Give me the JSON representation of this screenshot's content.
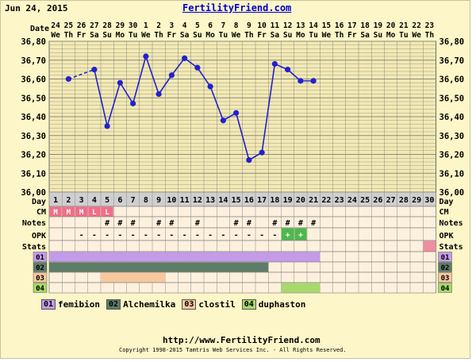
{
  "header": {
    "date": "Jun 24, 2015",
    "site": "FertilityFriend.com"
  },
  "footer": {
    "url": "http://www.FertilityFriend.com",
    "copyright": "Copyright 1998-2015 Tamtris Web Services Inc. - All Rights Reserved."
  },
  "colors": {
    "background": "#fdf6c8",
    "line": "#2222cc",
    "grid": "#8a8a7a",
    "cm_menses": "#f36d87",
    "opk_positive": "#4db84d",
    "stats": "#f28ca0"
  },
  "row_labels": {
    "date": "Date",
    "day": "Day",
    "cm": "CM",
    "notes": "Notes",
    "opk": "OPK",
    "stats": "Stats"
  },
  "chart_data": {
    "type": "line",
    "date_numbers": [
      "24",
      "25",
      "26",
      "27",
      "28",
      "29",
      "30",
      "1",
      "2",
      "3",
      "4",
      "5",
      "6",
      "7",
      "8",
      "9",
      "10",
      "11",
      "12",
      "13",
      "14",
      "15",
      "16",
      "17",
      "18",
      "19",
      "20",
      "21",
      "22",
      "23"
    ],
    "weekdays": [
      "We",
      "Th",
      "Fr",
      "Sa",
      "Su",
      "Mo",
      "Tu",
      "We",
      "Th",
      "Fr",
      "Sa",
      "Su",
      "Mo",
      "Tu",
      "We",
      "Th",
      "Fr",
      "Sa",
      "Su",
      "Mo",
      "Tu",
      "We",
      "Th",
      "Fr",
      "Sa",
      "Su",
      "Mo",
      "Tu",
      "We",
      "Th"
    ],
    "days": [
      "1",
      "2",
      "3",
      "4",
      "5",
      "6",
      "7",
      "8",
      "9",
      "10",
      "11",
      "12",
      "13",
      "14",
      "15",
      "16",
      "17",
      "18",
      "19",
      "20",
      "21",
      "22",
      "23",
      "24",
      "25",
      "26",
      "27",
      "28",
      "29",
      "30"
    ],
    "ylim": [
      36.0,
      36.8
    ],
    "y_ticks": [
      "36,00",
      "36,10",
      "36,20",
      "36,30",
      "36,40",
      "36,50",
      "36,60",
      "36,70",
      "36,80"
    ],
    "series": [
      {
        "values": [
          null,
          36.6,
          null,
          36.65,
          36.35,
          36.58,
          36.47,
          36.72,
          36.52,
          36.62,
          36.71,
          36.66,
          36.56,
          36.38,
          36.42,
          36.17,
          36.21,
          36.68,
          36.65,
          36.59,
          36.59,
          null,
          null,
          null,
          null,
          null,
          null,
          null,
          null,
          null
        ]
      }
    ],
    "dashed_segment_days": [
      2,
      4
    ],
    "cm": [
      "M",
      "M",
      "M",
      "L",
      "L",
      "",
      "",
      "",
      "",
      "",
      "",
      "",
      "",
      "",
      "",
      "",
      "",
      "",
      "",
      "",
      "",
      "",
      "",
      "",
      "",
      "",
      "",
      "",
      "",
      ""
    ],
    "notes": [
      "",
      "",
      "",
      "",
      "#",
      "#",
      "#",
      "",
      "#",
      "#",
      "",
      "#",
      "",
      "",
      "#",
      "#",
      "",
      "#",
      "#",
      "#",
      "#",
      "",
      "",
      "",
      "",
      "",
      "",
      "",
      "",
      ""
    ],
    "opk": [
      "",
      "",
      "-",
      "-",
      "-",
      "-",
      "-",
      "-",
      "-",
      "-",
      "-",
      "-",
      "-",
      "-",
      "-",
      "-",
      "-",
      "-",
      "+",
      "+",
      "",
      "",
      "",
      "",
      "",
      "",
      "",
      "",
      "",
      ""
    ],
    "stats_marked_day": 30,
    "meds": [
      {
        "id": "01",
        "name": "femibion",
        "color": "#c39be8",
        "start": 1,
        "end": 21
      },
      {
        "id": "02",
        "name": "Alchemilka",
        "color": "#5e7d67",
        "start": 1,
        "end": 17
      },
      {
        "id": "03",
        "name": "clostil",
        "color": "#f7c8a0",
        "start": 5,
        "end": 9
      },
      {
        "id": "04",
        "name": "duphaston",
        "color": "#a8d96d",
        "start": 19,
        "end": 21
      }
    ]
  }
}
